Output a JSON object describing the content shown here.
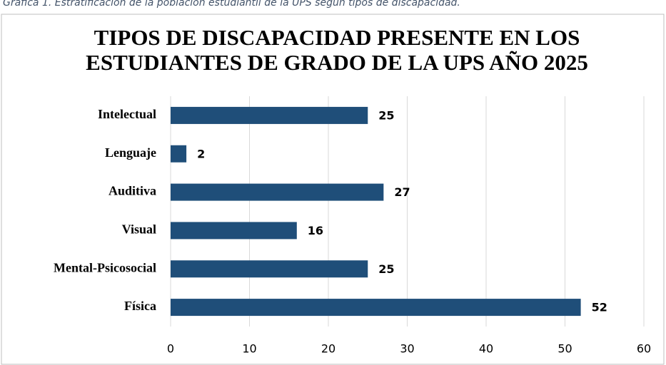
{
  "caption": "Gráfica 1. Estratificación de la población estudiantil de la UPS según tipos de discapacidad.",
  "chart_data": {
    "type": "bar",
    "orientation": "horizontal",
    "title": [
      "TIPOS DE DISCAPACIDAD PRESENTE EN LOS",
      "ESTUDIANTES DE GRADO DE LA UPS AÑO 2025"
    ],
    "categories": [
      "Intelectual",
      "Lenguaje",
      "Auditiva",
      "Visual",
      "Mental-Psicosocial",
      "Física"
    ],
    "values": [
      25,
      2,
      27,
      16,
      25,
      52
    ],
    "color": "#1f4e79",
    "xlim": [
      0,
      60
    ],
    "xticks": [
      0,
      10,
      20,
      30,
      40,
      50,
      60
    ],
    "grid": true
  }
}
